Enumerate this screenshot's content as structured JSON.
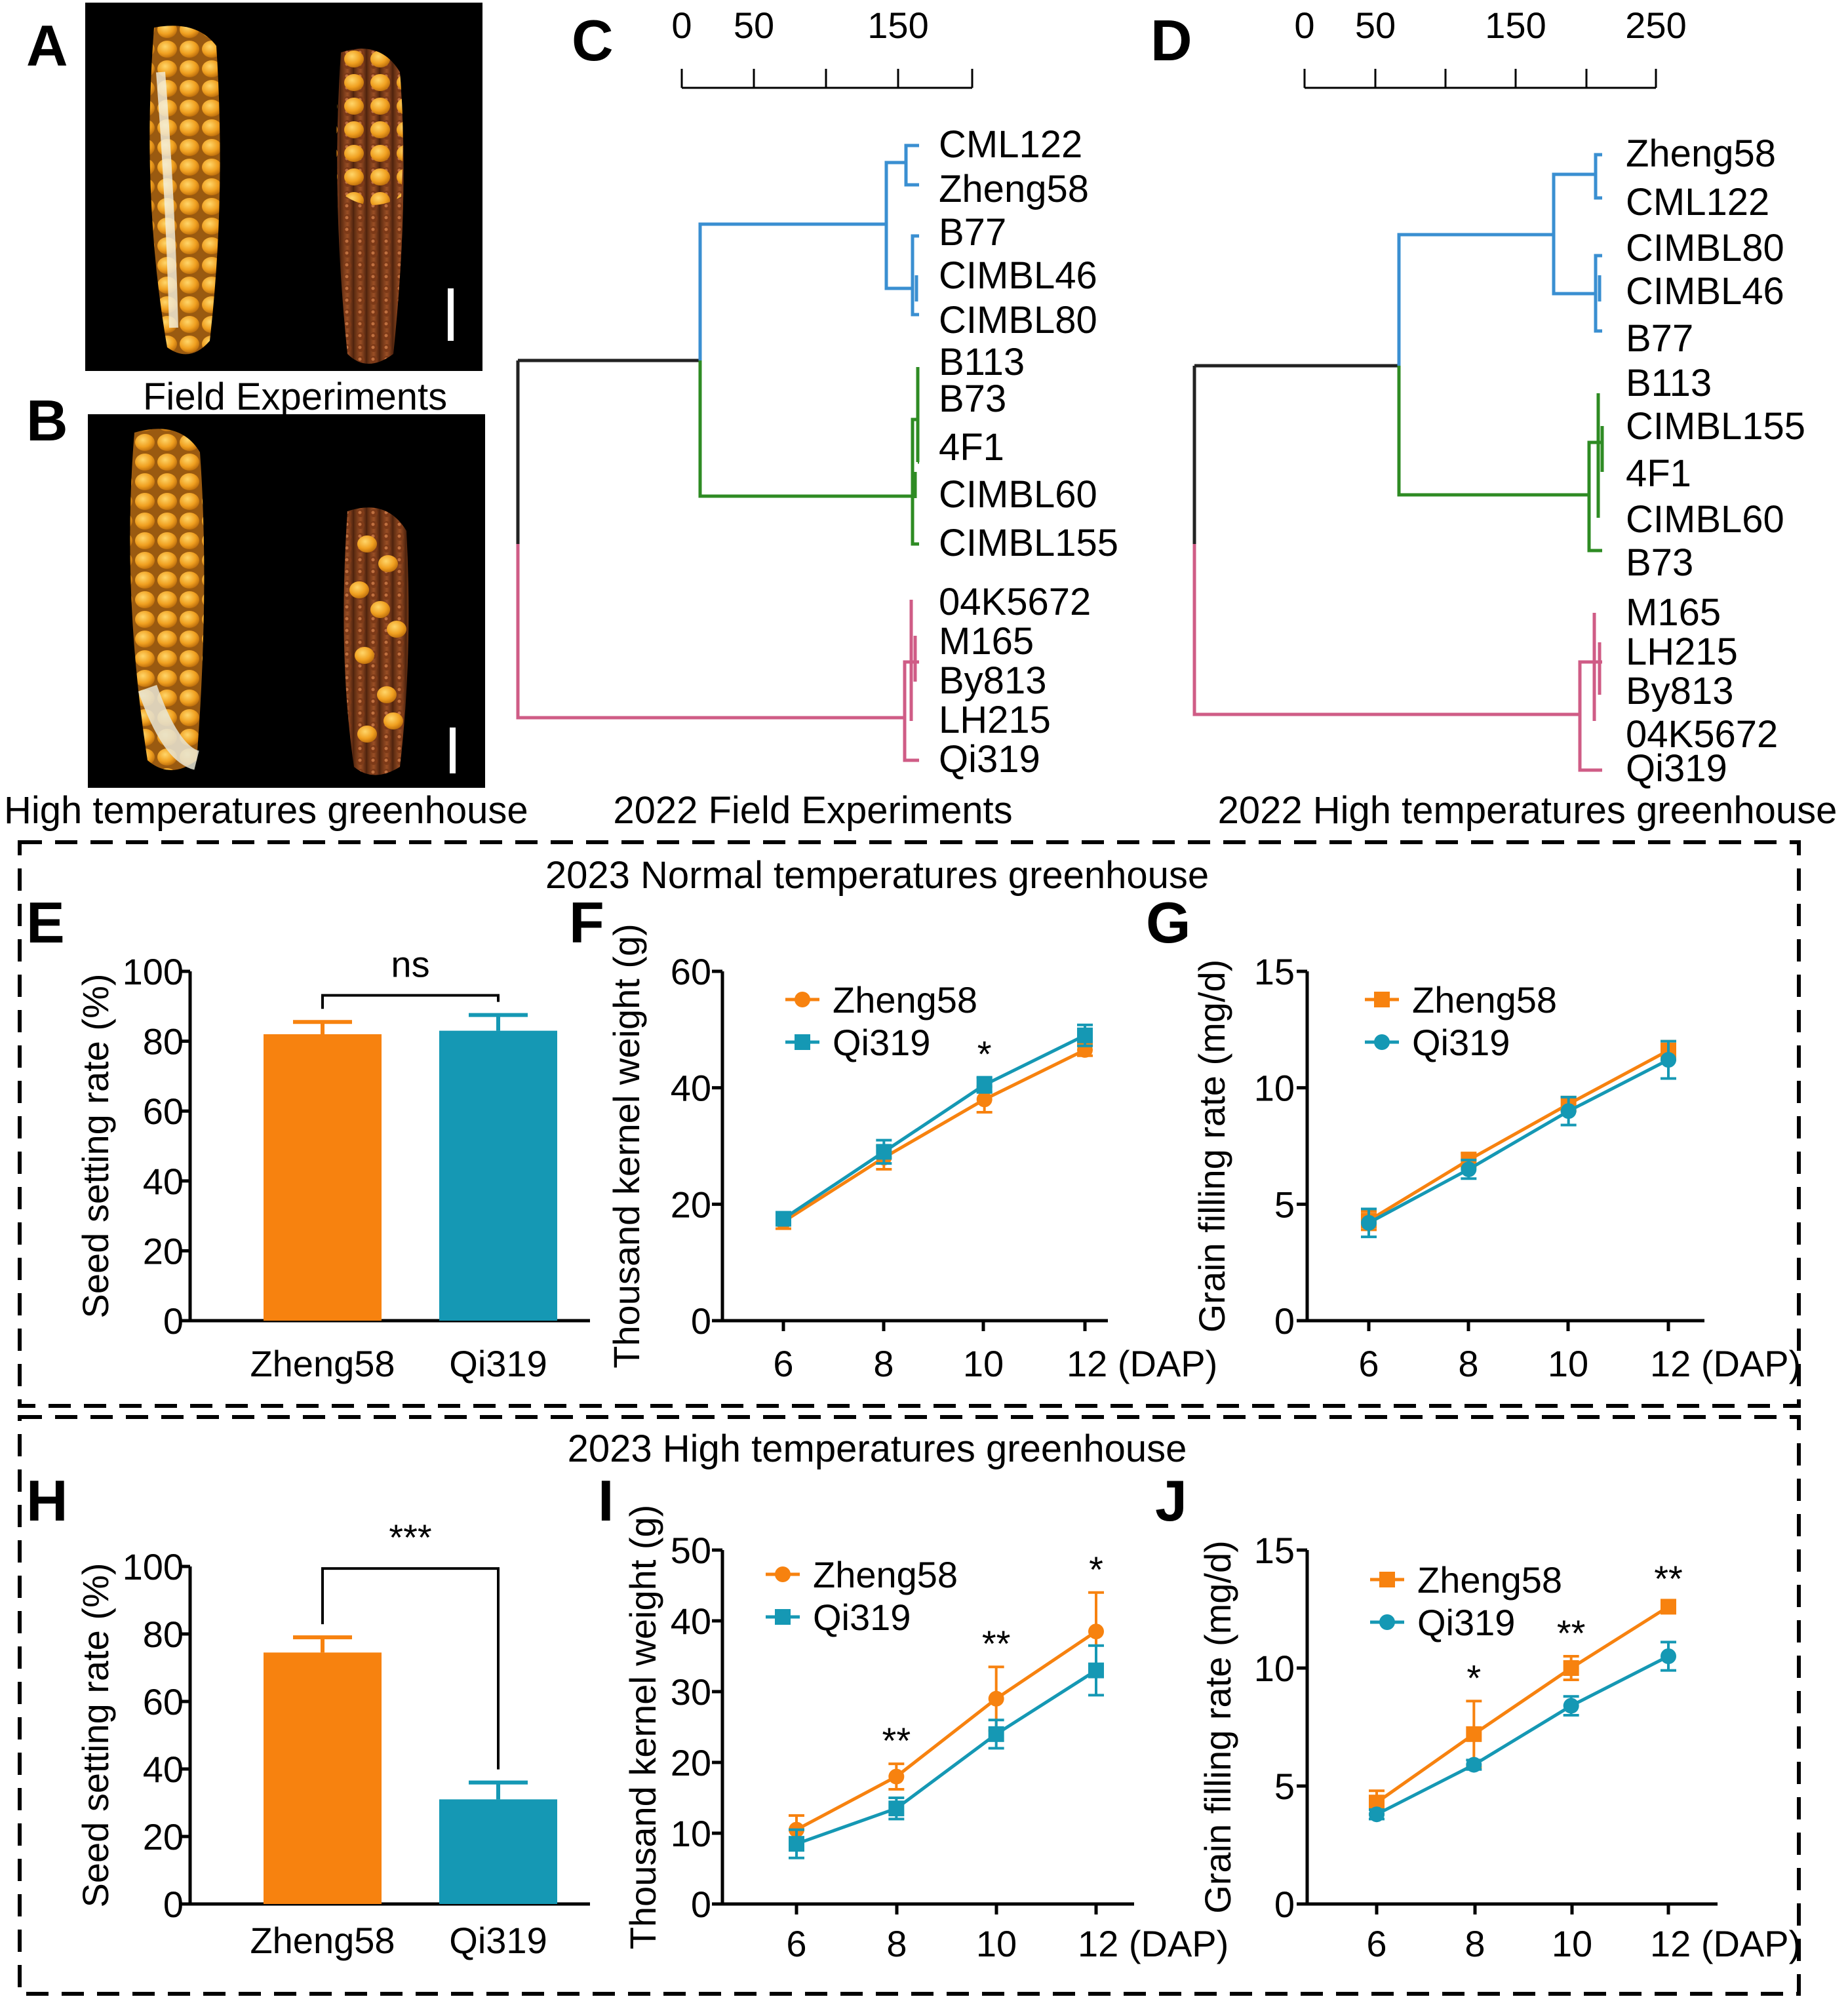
{
  "panels": {
    "A": "A",
    "B": "B",
    "C": "C",
    "D": "D",
    "E": "E",
    "F": "F",
    "G": "G",
    "H": "H",
    "I": "I",
    "J": "J"
  },
  "captions": {
    "field": "Field Experiments",
    "greenhouse": "High temperatures greenhouse",
    "c_title": "2022 Field Experiments",
    "d_title": "2022 High temperatures greenhouse",
    "normal_box": "2023 Normal temperatures greenhouse",
    "high_box": "2023 High temperatures greenhouse"
  },
  "colors": {
    "zheng58": "#f7820f",
    "qi319": "#1598b4",
    "blue_clade": "#3a8fd1",
    "green_clade": "#2e8b23",
    "pink_clade": "#cf5c86",
    "root": "#222222"
  },
  "dendro_C": {
    "scale_ticks": [
      "0",
      "50",
      "150"
    ],
    "blue": [
      "CML122",
      "Zheng58",
      "B77",
      "CIMBL46",
      "CIMBL80"
    ],
    "green": [
      "B113",
      "B73",
      "4F1",
      "CIMBL60",
      "CIMBL155"
    ],
    "pink": [
      "04K5672",
      "M165",
      "By813",
      "LH215",
      "Qi319"
    ]
  },
  "dendro_D": {
    "scale_ticks": [
      "0",
      "50",
      "150",
      "250"
    ],
    "blue": [
      "Zheng58",
      "CML122",
      "CIMBL80",
      "CIMBL46",
      "B77"
    ],
    "green": [
      "B113",
      "CIMBL155",
      "4F1",
      "CIMBL60",
      "B73"
    ],
    "pink": [
      "M165",
      "LH215",
      "By813",
      "04K5672",
      "Qi319"
    ]
  },
  "chart_data": [
    {
      "id": "E",
      "type": "bar",
      "title": "2023 Normal temperatures greenhouse",
      "ylabel": "Seed setting rate (%)",
      "ylim": [
        0,
        100
      ],
      "yticks": [
        "0",
        "20",
        "40",
        "60",
        "80",
        "100"
      ],
      "categories": [
        "Zheng58",
        "Qi319"
      ],
      "values": [
        82,
        83
      ],
      "errors": [
        3.5,
        4.5
      ],
      "significance": "ns"
    },
    {
      "id": "F",
      "type": "line",
      "ylabel": "Thousand kernel weight (g)",
      "ylim": [
        0,
        60
      ],
      "yticks": [
        "0",
        "20",
        "40",
        "60"
      ],
      "x": [
        6,
        8,
        10,
        12
      ],
      "xticks": [
        "6",
        "8",
        "10",
        "12 (DAP)"
      ],
      "series": [
        {
          "name": "Zheng58",
          "values": [
            17,
            28,
            38,
            46.5
          ],
          "errors": [
            1.2,
            2,
            2.2,
            1
          ],
          "marker": "circle"
        },
        {
          "name": "Qi319",
          "values": [
            17.5,
            29,
            40.5,
            49
          ],
          "errors": [
            1,
            2,
            1.3,
            1.8
          ],
          "marker": "square"
        }
      ],
      "annotations": [
        {
          "x": 10,
          "text": "*"
        }
      ]
    },
    {
      "id": "G",
      "type": "line",
      "ylabel": "Grain filling rate (mg/d)",
      "ylim": [
        0,
        15
      ],
      "yticks": [
        "0",
        "5",
        "10",
        "15"
      ],
      "x": [
        6,
        8,
        10,
        12
      ],
      "xticks": [
        "6",
        "8",
        "10",
        "12 (DAP)"
      ],
      "series": [
        {
          "name": "Zheng58",
          "values": [
            4.3,
            6.9,
            9.3,
            11.6
          ],
          "errors": [
            0.4,
            0.3,
            0.3,
            0.4
          ],
          "marker": "square"
        },
        {
          "name": "Qi319",
          "values": [
            4.2,
            6.5,
            9.0,
            11.2
          ],
          "errors": [
            0.6,
            0.4,
            0.6,
            0.8
          ],
          "marker": "circle"
        }
      ],
      "annotations": []
    },
    {
      "id": "H",
      "type": "bar",
      "title": "2023 High temperatures greenhouse",
      "ylabel": "Seed setting rate (%)",
      "ylim": [
        0,
        100
      ],
      "yticks": [
        "0",
        "20",
        "40",
        "60",
        "80",
        "100"
      ],
      "categories": [
        "Zheng58",
        "Qi319"
      ],
      "values": [
        74.5,
        31
      ],
      "errors": [
        4.5,
        5
      ],
      "significance": "***"
    },
    {
      "id": "I",
      "type": "line",
      "ylabel": "Thousand kernel weight (g)",
      "ylim": [
        0,
        50
      ],
      "yticks": [
        "0",
        "10",
        "20",
        "30",
        "40",
        "50"
      ],
      "x": [
        6,
        8,
        10,
        12
      ],
      "xticks": [
        "6",
        "8",
        "10",
        "12 (DAP)"
      ],
      "series": [
        {
          "name": "Zheng58",
          "values": [
            10.5,
            18,
            29,
            38.5
          ],
          "errors": [
            2,
            1.8,
            4.5,
            5.5
          ],
          "marker": "circle"
        },
        {
          "name": "Qi319",
          "values": [
            8.5,
            13.5,
            24,
            33
          ],
          "errors": [
            2,
            1.5,
            2,
            3.5
          ],
          "marker": "square"
        }
      ],
      "annotations": [
        {
          "x": 8,
          "text": "**"
        },
        {
          "x": 10,
          "text": "**"
        },
        {
          "x": 12,
          "text": "*"
        }
      ]
    },
    {
      "id": "J",
      "type": "line",
      "ylabel": "Grain filling rate (mg/d)",
      "ylim": [
        0,
        15
      ],
      "yticks": [
        "0",
        "5",
        "10",
        "15"
      ],
      "x": [
        6,
        8,
        10,
        12
      ],
      "xticks": [
        "6",
        "8",
        "10",
        "12 (DAP)"
      ],
      "series": [
        {
          "name": "Zheng58",
          "values": [
            4.3,
            7.2,
            10,
            12.6
          ],
          "errors": [
            0.5,
            1.4,
            0.5,
            0.2
          ],
          "marker": "square"
        },
        {
          "name": "Qi319",
          "values": [
            3.8,
            5.9,
            8.4,
            10.5
          ],
          "errors": [
            0.2,
            0.2,
            0.4,
            0.6
          ],
          "marker": "circle"
        }
      ],
      "annotations": [
        {
          "x": 8,
          "text": "*"
        },
        {
          "x": 10,
          "text": "**"
        },
        {
          "x": 12,
          "text": "**"
        }
      ]
    }
  ]
}
